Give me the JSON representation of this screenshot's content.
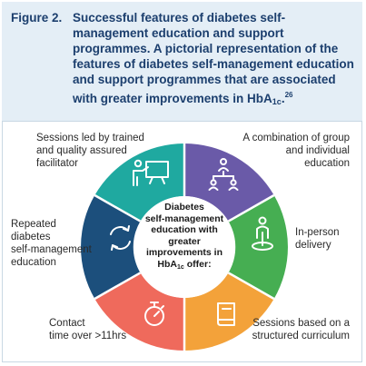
{
  "figure": {
    "label": "Figure 2.",
    "caption_main": "Successful features of diabetes self-management education and support programmes. A pictorial representation of the features of diabetes self-management education and support programmes that are associated with greater improvements in HbA",
    "caption_sub": "1c",
    "caption_end": ".",
    "caption_ref": "26"
  },
  "center": {
    "lines": [
      "Diabetes",
      "self-management",
      "education with greater",
      "improvements in"
    ],
    "last_pre": "HbA",
    "last_sub": "1c",
    "last_post": " offer:"
  },
  "segments": [
    {
      "label_lines": [
        "Sessions led by trained",
        "and quality assured",
        "facilitator"
      ],
      "color": "#1fa9a0",
      "icon": "presenter-board-icon"
    },
    {
      "label_lines": [
        "A combination of group",
        "and individual",
        "education"
      ],
      "color": "#6a5aa8",
      "icon": "group-network-icon"
    },
    {
      "label_lines": [
        "In-person",
        "delivery"
      ],
      "color": "#46ae52",
      "icon": "person-pin-icon"
    },
    {
      "label_lines": [
        "Sessions based on a",
        "structured curriculum"
      ],
      "color": "#f3a23a",
      "icon": "book-icon"
    },
    {
      "label_lines": [
        "Contact",
        "time over >11hrs"
      ],
      "color": "#ef6a5c",
      "icon": "stopwatch-icon"
    },
    {
      "label_lines": [
        "Repeated",
        "diabetes",
        "self-management",
        "education"
      ],
      "color": "#1c4f7c",
      "icon": "repeat-arrows-icon"
    }
  ]
}
